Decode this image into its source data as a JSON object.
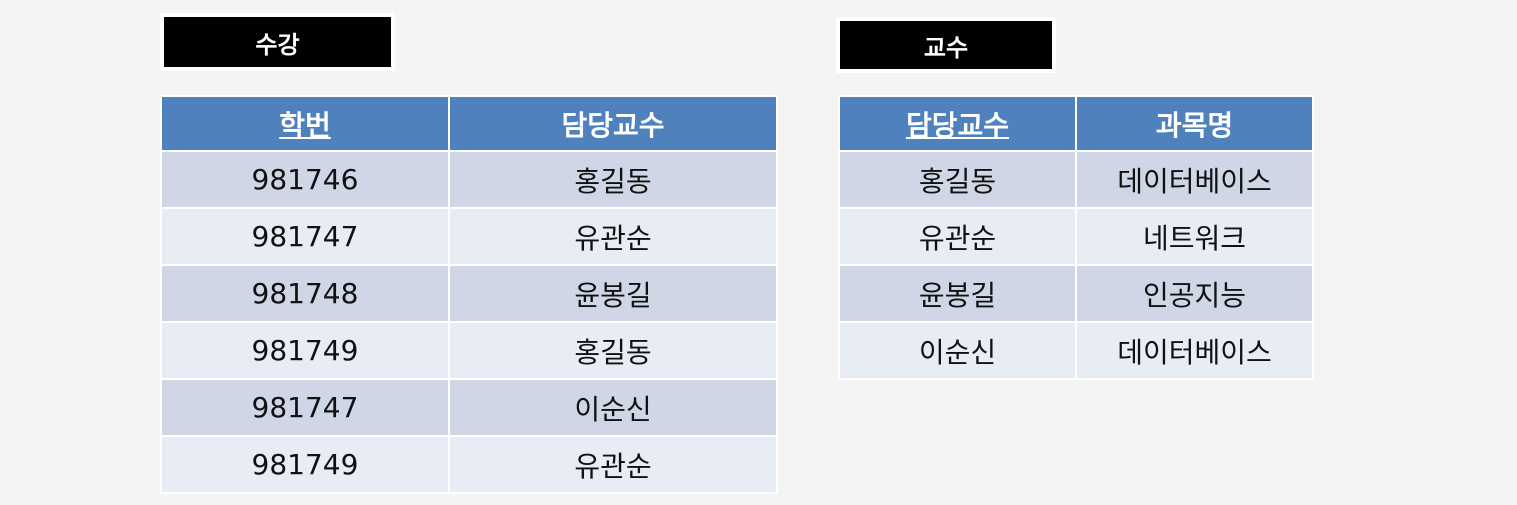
{
  "left": {
    "title": "수강",
    "headers": [
      "학번",
      "담당교수"
    ],
    "rows": [
      [
        "981746",
        "홍길동"
      ],
      [
        "981747",
        "유관순"
      ],
      [
        "981748",
        "윤봉길"
      ],
      [
        "981749",
        "홍길동"
      ],
      [
        "981747",
        "이순신"
      ],
      [
        "981749",
        "유관순"
      ]
    ]
  },
  "right": {
    "title": "교수",
    "headers": [
      "담당교수",
      "과목명"
    ],
    "rows": [
      [
        "홍길동",
        "데이터베이스"
      ],
      [
        "유관순",
        "네트워크"
      ],
      [
        "윤봉길",
        "인공지능"
      ],
      [
        "이순신",
        "데이터베이스"
      ]
    ]
  },
  "colors": {
    "header": "#4f81bd",
    "row_dark": "#cfd6e6",
    "row_light": "#e8ecf4",
    "label_bg": "#000000"
  }
}
